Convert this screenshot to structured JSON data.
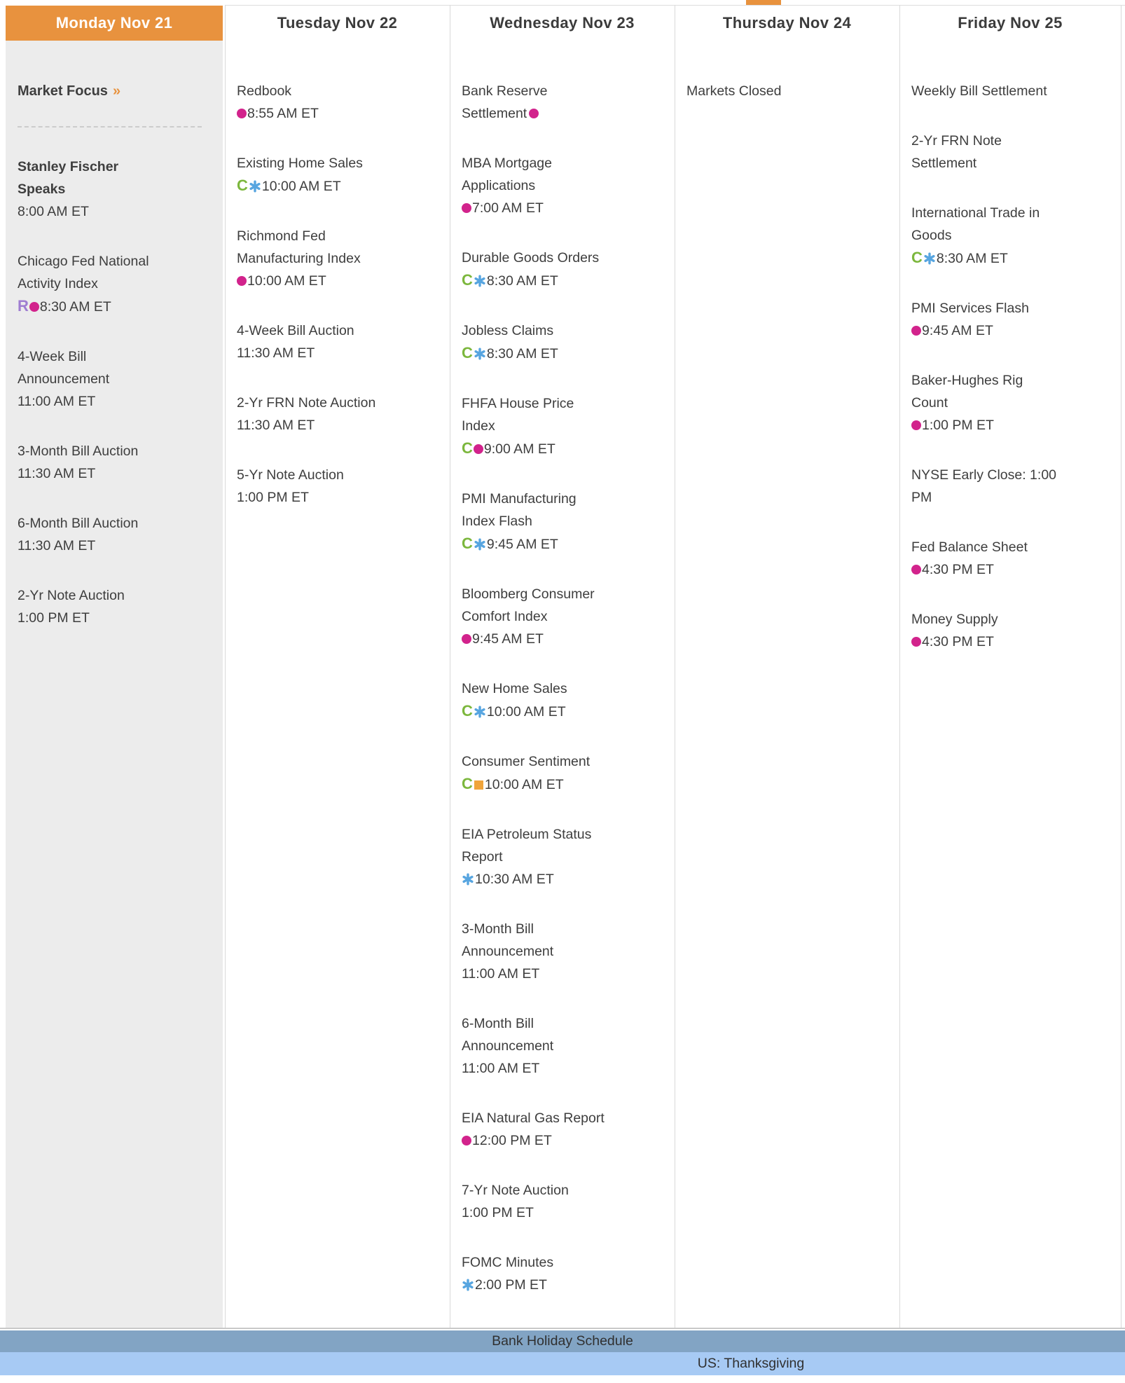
{
  "colors": {
    "accent_orange": "#E8923E",
    "monday_bg": "#ECECEC",
    "text": "#3E3E3E",
    "divider": "#D9D9D9",
    "dashed": "#CCCCCC",
    "holiday_header_bg": "#82A4C4",
    "holiday_row_bg": "#A7CAF4",
    "icon_dot": "#D2238C",
    "icon_consensus": "#7CB73D",
    "icon_star": "#57A5E0",
    "icon_revised": "#9F7DD1",
    "icon_square": "#F0A43A"
  },
  "icons": {
    "consensus_letter": "C",
    "revised_letter": "R"
  },
  "holiday": {
    "header": "Bank Holiday Schedule",
    "entry": "US: Thanksgiving"
  },
  "days": [
    {
      "id": "monday",
      "label": "Monday Nov 21",
      "active": true,
      "market_focus": {
        "label": "Market Focus",
        "arrow": "»"
      },
      "events": [
        {
          "name": "Stanley Fischer\nSpeaks",
          "bold": true,
          "time": "8:00 AM ET",
          "time_icons": []
        },
        {
          "name": "Chicago Fed National\nActivity Index",
          "time": "8:30 AM ET",
          "time_icons": [
            "revised",
            "dot"
          ]
        },
        {
          "name": "4-Week Bill\nAnnouncement",
          "time": "11:00 AM ET",
          "time_icons": []
        },
        {
          "name": "3-Month Bill Auction",
          "time": "11:30 AM ET",
          "time_icons": []
        },
        {
          "name": "6-Month Bill Auction",
          "time": "11:30 AM ET",
          "time_icons": []
        },
        {
          "name": "2-Yr Note Auction",
          "time": "1:00 PM ET",
          "time_icons": []
        }
      ]
    },
    {
      "id": "tuesday",
      "label": "Tuesday Nov 22",
      "events": [
        {
          "name": "Redbook",
          "time": "8:55 AM ET",
          "time_icons": [
            "dot"
          ]
        },
        {
          "name": "Existing Home Sales",
          "time": "10:00 AM ET",
          "time_icons": [
            "consensus",
            "star"
          ]
        },
        {
          "name": "Richmond Fed\nManufacturing Index",
          "time": "10:00 AM ET",
          "time_icons": [
            "dot"
          ]
        },
        {
          "name": "4-Week Bill Auction",
          "time": "11:30 AM ET",
          "time_icons": []
        },
        {
          "name": "2-Yr FRN Note Auction",
          "time": "11:30 AM ET",
          "time_icons": []
        },
        {
          "name": "5-Yr Note Auction",
          "time": "1:00 PM ET",
          "time_icons": []
        }
      ]
    },
    {
      "id": "wednesday",
      "label": "Wednesday Nov 23",
      "events": [
        {
          "name": "Bank Reserve\nSettlement",
          "name_icons": [
            "dot"
          ]
        },
        {
          "name": "MBA Mortgage\nApplications",
          "time": "7:00 AM ET",
          "time_icons": [
            "dot"
          ]
        },
        {
          "name": "Durable Goods Orders",
          "time": "8:30 AM ET",
          "time_icons": [
            "consensus",
            "star"
          ]
        },
        {
          "name": "Jobless Claims",
          "time": "8:30 AM ET",
          "time_icons": [
            "consensus",
            "star"
          ]
        },
        {
          "name": "FHFA House Price\nIndex",
          "time": "9:00 AM ET",
          "time_icons": [
            "consensus",
            "dot"
          ]
        },
        {
          "name": "PMI Manufacturing\nIndex Flash",
          "time": "9:45 AM ET",
          "time_icons": [
            "consensus",
            "star"
          ]
        },
        {
          "name": "Bloomberg Consumer\nComfort Index",
          "time": "9:45 AM ET",
          "time_icons": [
            "dot"
          ]
        },
        {
          "name": "New Home Sales",
          "time": "10:00 AM ET",
          "time_icons": [
            "consensus",
            "star"
          ]
        },
        {
          "name": "Consumer Sentiment",
          "time": "10:00 AM ET",
          "time_icons": [
            "consensus",
            "square"
          ]
        },
        {
          "name": "EIA Petroleum Status\nReport",
          "time": "10:30 AM ET",
          "time_icons": [
            "star"
          ]
        },
        {
          "name": "3-Month Bill\nAnnouncement",
          "time": "11:00 AM ET",
          "time_icons": []
        },
        {
          "name": "6-Month Bill\nAnnouncement",
          "time": "11:00 AM ET",
          "time_icons": []
        },
        {
          "name": "EIA Natural Gas Report",
          "time": "12:00 PM ET",
          "time_icons": [
            "dot"
          ]
        },
        {
          "name": "7-Yr Note Auction",
          "time": "1:00 PM ET",
          "time_icons": []
        },
        {
          "name": "FOMC Minutes",
          "time": "2:00 PM ET",
          "time_icons": [
            "star"
          ]
        }
      ]
    },
    {
      "id": "thursday",
      "label": "Thursday Nov 24",
      "note": "Markets Closed",
      "events": []
    },
    {
      "id": "friday",
      "label": "Friday Nov 25",
      "events": [
        {
          "name": "Weekly Bill Settlement"
        },
        {
          "name": "2-Yr FRN Note\nSettlement"
        },
        {
          "name": "International Trade in\nGoods",
          "time": "8:30 AM ET",
          "time_icons": [
            "consensus",
            "star"
          ]
        },
        {
          "name": "PMI Services Flash",
          "time": "9:45 AM ET",
          "time_icons": [
            "dot"
          ]
        },
        {
          "name": "Baker-Hughes Rig\nCount",
          "time": "1:00 PM ET",
          "time_icons": [
            "dot"
          ]
        },
        {
          "name": "NYSE Early Close: 1:00\nPM"
        },
        {
          "name": "Fed Balance Sheet",
          "time": "4:30 PM ET",
          "time_icons": [
            "dot"
          ]
        },
        {
          "name": "Money Supply",
          "time": "4:30 PM ET",
          "time_icons": [
            "dot"
          ]
        }
      ]
    }
  ]
}
